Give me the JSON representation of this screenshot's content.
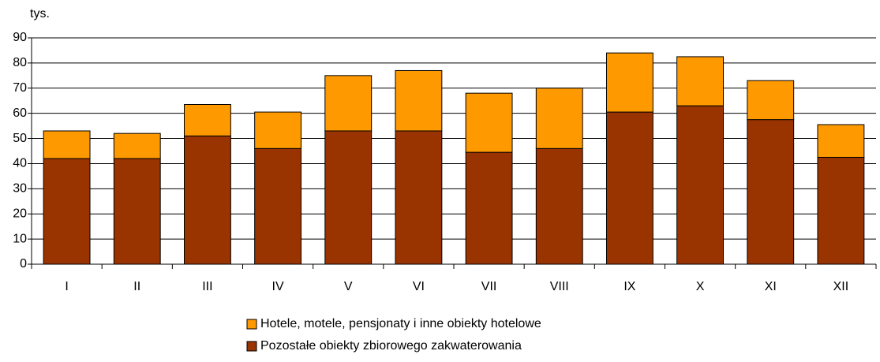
{
  "chart_data": {
    "type": "stacked_bar",
    "y_label": "tys.",
    "categories": [
      "I",
      "II",
      "III",
      "IV",
      "V",
      "VI",
      "VII",
      "VIII",
      "IX",
      "X",
      "XI",
      "XII"
    ],
    "series": [
      {
        "name": "Pozostałe obiekty zbiorowego zakwaterowania",
        "color": "#993300",
        "values": [
          42,
          42,
          51,
          46,
          53,
          53,
          44.5,
          46,
          60.5,
          63,
          57.5,
          42.5
        ]
      },
      {
        "name": "Hotele, motele, pensjonaty i inne obiekty hotelowe",
        "color": "#FF9900",
        "values": [
          11,
          10,
          12.5,
          14.5,
          22,
          24,
          23.5,
          24,
          23.5,
          19.5,
          15.5,
          13
        ]
      }
    ],
    "ylim": [
      0,
      90
    ],
    "yticks": [
      0,
      10,
      20,
      30,
      40,
      50,
      60,
      70,
      80,
      90
    ],
    "grid": true
  }
}
